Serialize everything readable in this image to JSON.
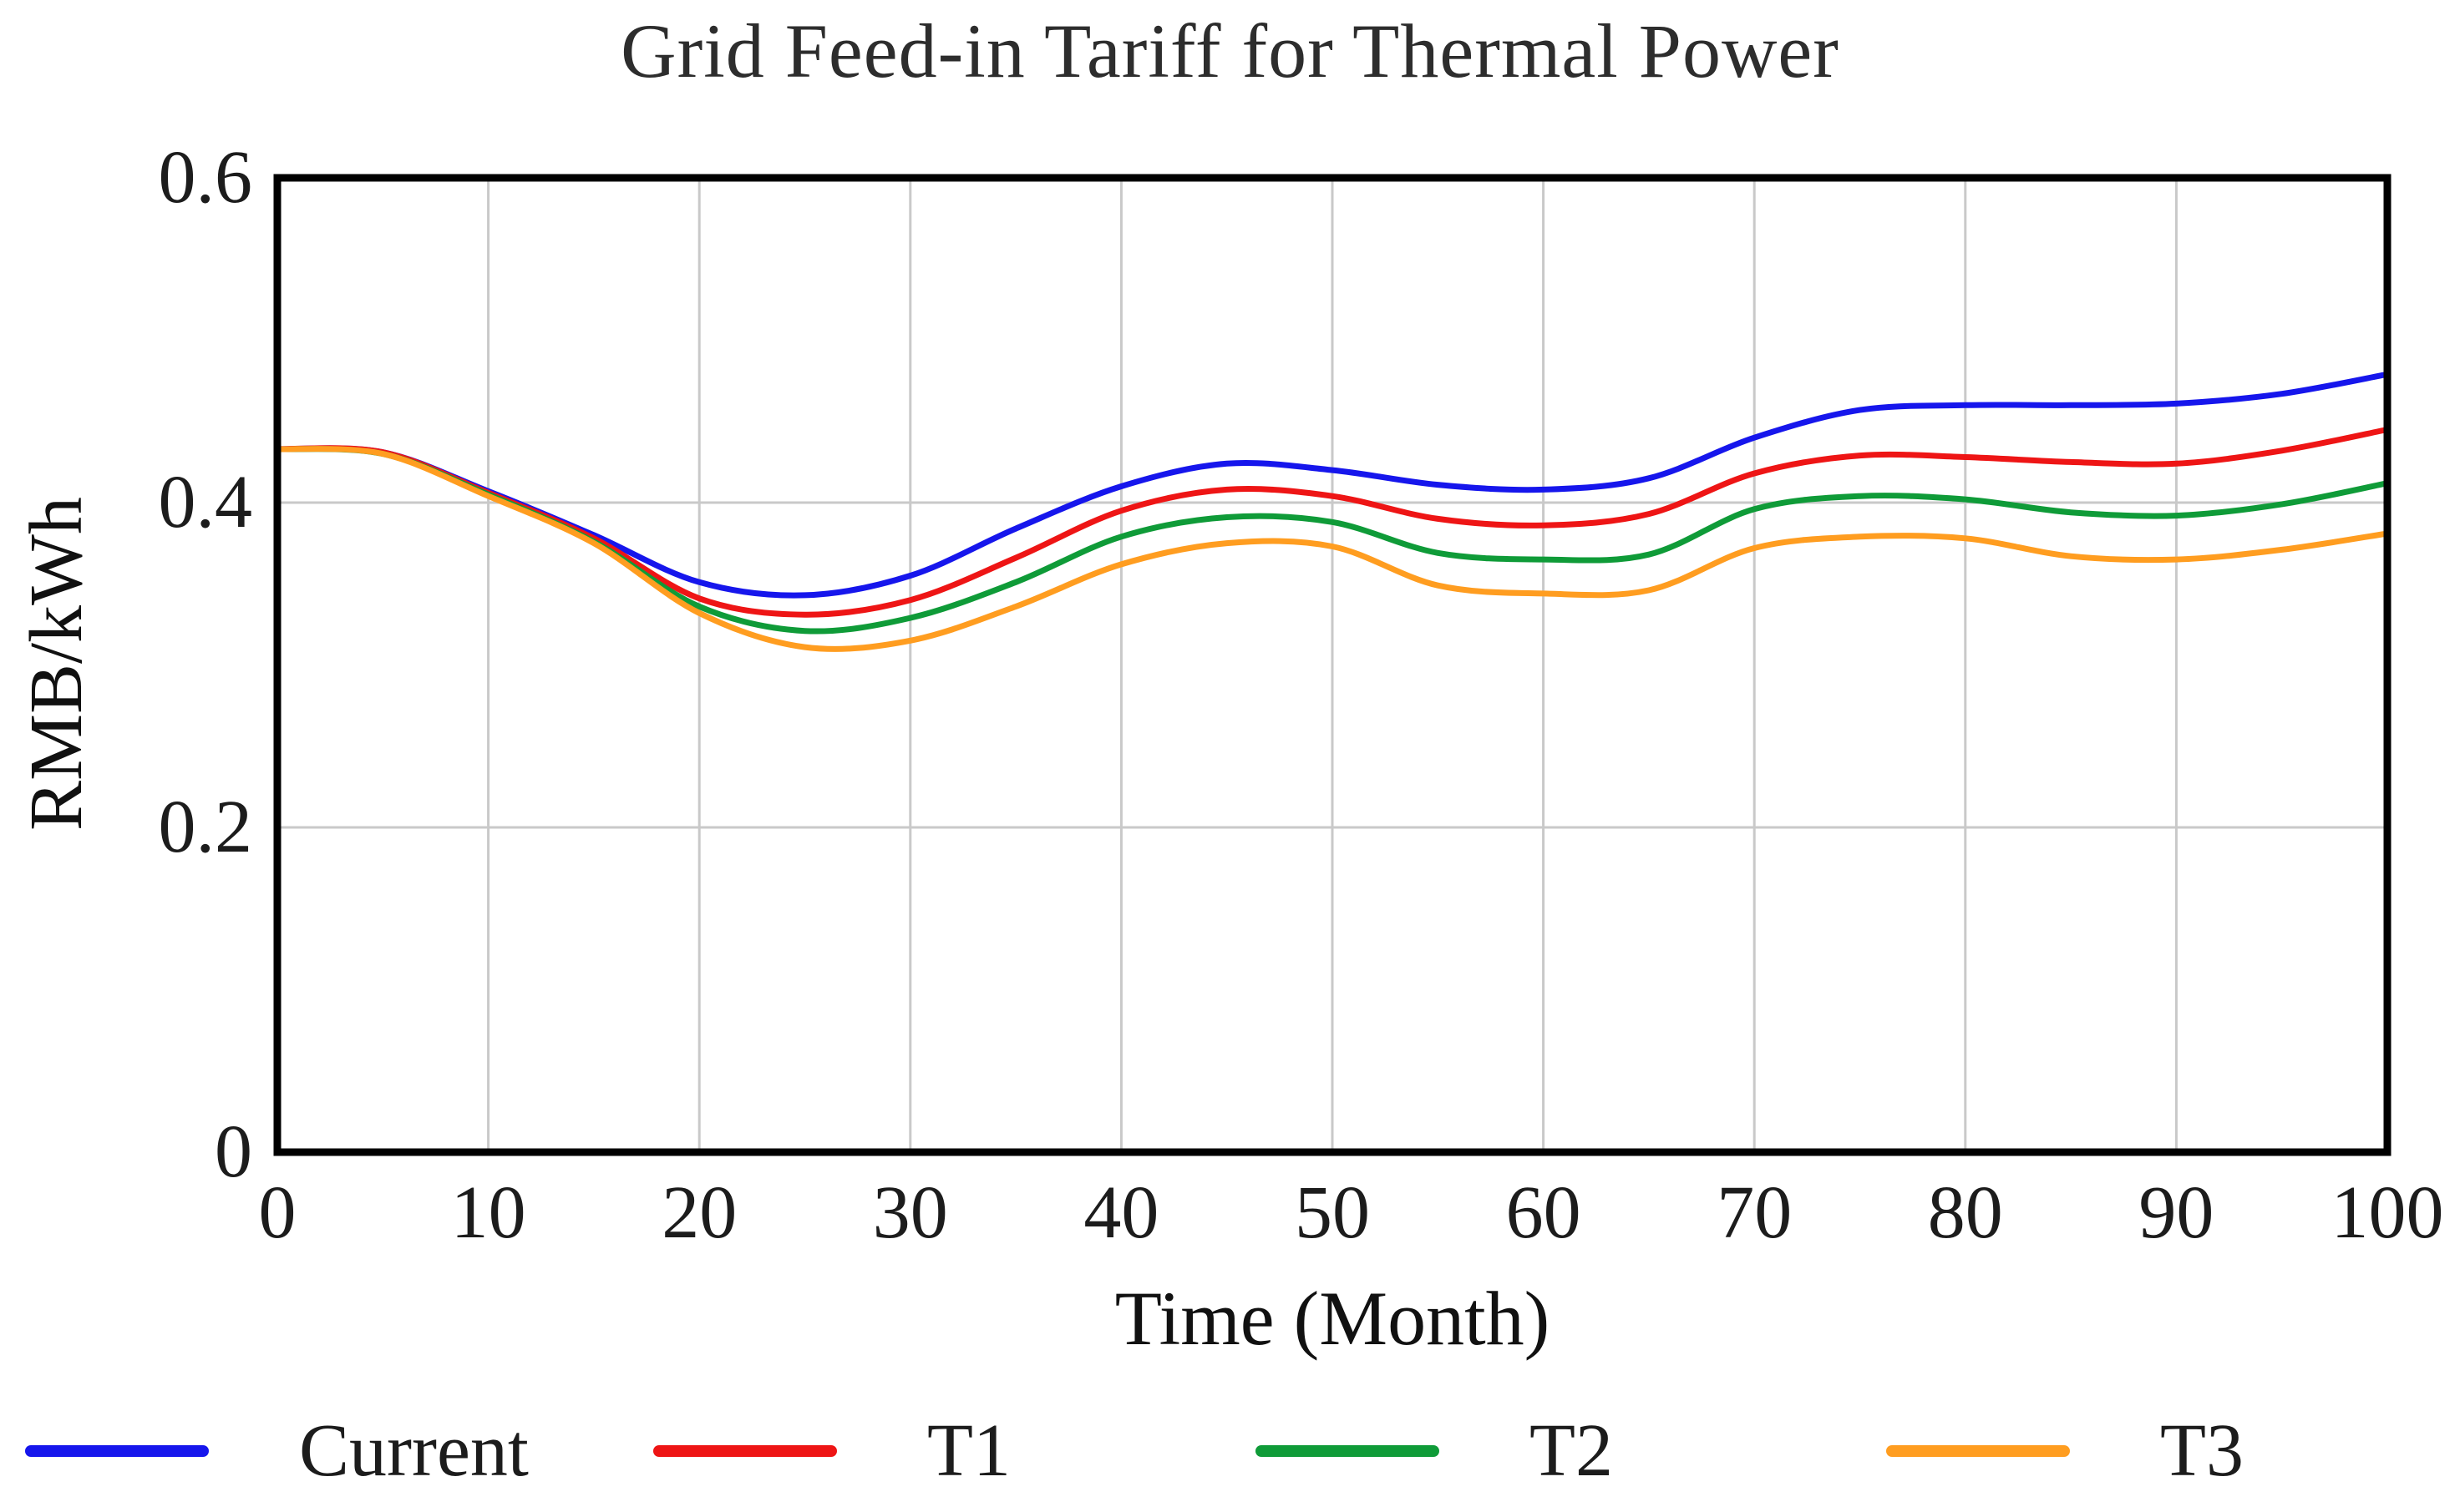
{
  "title": "Grid Feed-in Tariff for Thermal Power",
  "chart_data": {
    "type": "line",
    "title": "Grid Feed-in Tariff for Thermal Power",
    "xlabel": "Time (Month)",
    "ylabel": "RMB/kWh",
    "xlim": [
      0,
      100
    ],
    "ylim": [
      0,
      0.6
    ],
    "x_ticks": [
      0,
      10,
      20,
      30,
      40,
      50,
      60,
      70,
      80,
      90,
      100
    ],
    "y_ticks": [
      0,
      0.2,
      0.4,
      0.6
    ],
    "y_tick_labels": [
      "0",
      "0.2",
      "0.4",
      "0.6"
    ],
    "grid": true,
    "legend_position": "bottom",
    "x": [
      0,
      5,
      10,
      15,
      20,
      25,
      30,
      35,
      40,
      45,
      50,
      55,
      60,
      65,
      70,
      75,
      80,
      85,
      90,
      95,
      100
    ],
    "series": [
      {
        "name": "Current",
        "color": "#1616ec",
        "values": [
          0.433,
          0.431,
          0.407,
          0.38,
          0.351,
          0.343,
          0.355,
          0.384,
          0.41,
          0.424,
          0.42,
          0.411,
          0.408,
          0.415,
          0.44,
          0.457,
          0.46,
          0.46,
          0.461,
          0.467,
          0.479
        ]
      },
      {
        "name": "T1",
        "color": "#ee1515",
        "values": [
          0.433,
          0.431,
          0.406,
          0.378,
          0.341,
          0.331,
          0.34,
          0.366,
          0.395,
          0.408,
          0.404,
          0.39,
          0.386,
          0.393,
          0.418,
          0.429,
          0.428,
          0.425,
          0.424,
          0.432,
          0.445
        ]
      },
      {
        "name": "T2",
        "color": "#0f9b38",
        "values": [
          0.433,
          0.43,
          0.405,
          0.376,
          0.336,
          0.321,
          0.329,
          0.351,
          0.379,
          0.391,
          0.388,
          0.369,
          0.365,
          0.368,
          0.396,
          0.404,
          0.402,
          0.394,
          0.392,
          0.399,
          0.412
        ]
      },
      {
        "name": "T3",
        "color": "#ff9d20",
        "values": [
          0.433,
          0.43,
          0.404,
          0.375,
          0.332,
          0.311,
          0.315,
          0.336,
          0.362,
          0.375,
          0.373,
          0.349,
          0.344,
          0.346,
          0.372,
          0.379,
          0.378,
          0.367,
          0.365,
          0.371,
          0.381
        ]
      }
    ],
    "colors": {
      "grid": "#c9c9c9",
      "frame": "#000000",
      "text": "#1c1c1c"
    }
  }
}
